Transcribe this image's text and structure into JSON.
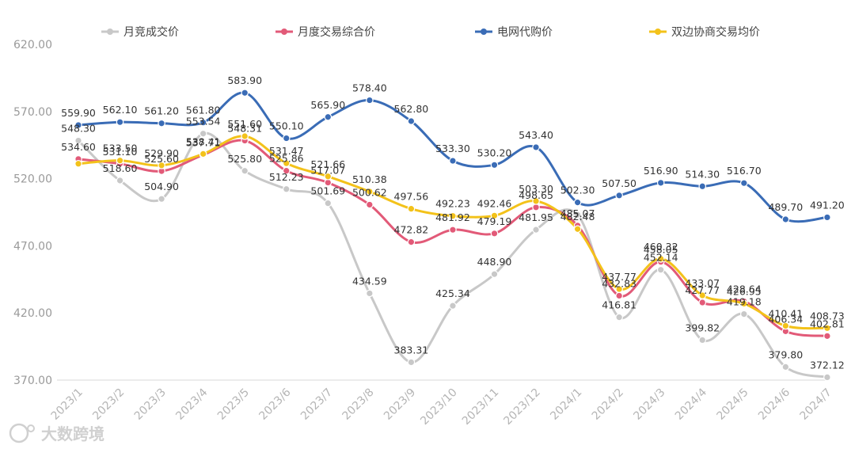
{
  "chart_data": {
    "type": "line",
    "title": "",
    "xlabel": "",
    "ylabel": "",
    "ylim": [
      370,
      620
    ],
    "yticks": [
      370,
      420,
      470,
      520,
      570,
      620
    ],
    "ytick_labels": [
      "370.00",
      "420.00",
      "470.00",
      "520.00",
      "570.00",
      "620.00"
    ],
    "grid": false,
    "legend_position": "top",
    "categories": [
      "2023/1",
      "2023/2",
      "2023/3",
      "2023/4",
      "2023/5",
      "2023/6",
      "2023/7",
      "2023/8",
      "2023/9",
      "2023/10",
      "2023/11",
      "2023/12",
      "2024/1",
      "2024/2",
      "2024/3",
      "2024/4",
      "2024/5",
      "2024/6",
      "2024/7"
    ],
    "series": [
      {
        "name": "月竞成交价",
        "color": "#c8c8c8",
        "values": [
          548.3,
          518.6,
          504.9,
          553.54,
          525.8,
          512.23,
          501.69,
          434.59,
          383.31,
          425.34,
          448.9,
          481.95,
          493.09,
          416.81,
          452.14,
          399.82,
          419.18,
          379.8,
          372.12
        ],
        "labels": [
          "548.30",
          "518.60",
          "504.90",
          "553.54",
          "525.80",
          "512.23",
          "501.69",
          "434.59",
          "383.31",
          "425.34",
          "448.90",
          "481.95",
          "",
          "416.81",
          "452.14",
          "399.82",
          "419.18",
          "379.80",
          "372.12"
        ]
      },
      {
        "name": "月度交易综合价",
        "color": "#e25a78",
        "values": [
          534.6,
          531.1,
          525.6,
          537.71,
          548.31,
          525.86,
          517.07,
          500.62,
          472.82,
          481.92,
          479.19,
          498.65,
          485.07,
          432.83,
          458.05,
          427.77,
          428.64,
          406.34,
          402.81
        ],
        "labels": [
          "534.60",
          "531.10",
          "525.60",
          "537.71",
          "548.31",
          "525.86",
          "517.07",
          "500.62",
          "472.82",
          "481.92",
          "479.19",
          "498.65",
          "485.07",
          "432.83",
          "458.05",
          "427.77",
          "428.64",
          "406.34",
          "402.81"
        ]
      },
      {
        "name": "电网代购价",
        "color": "#3a6cb6",
        "values": [
          559.9,
          562.1,
          561.2,
          561.8,
          583.9,
          550.1,
          565.9,
          578.4,
          562.8,
          533.3,
          530.2,
          543.4,
          502.3,
          507.5,
          516.9,
          514.3,
          516.7,
          489.7,
          491.2
        ],
        "labels": [
          "559.90",
          "562.10",
          "561.20",
          "561.80",
          "583.90",
          "550.10",
          "565.90",
          "578.40",
          "562.80",
          "533.30",
          "530.20",
          "543.40",
          "502.30",
          "507.50",
          "516.90",
          "514.30",
          "516.70",
          "489.70",
          "491.20"
        ]
      },
      {
        "name": "双边协商交易均价",
        "color": "#f3c21a",
        "values": [
          531.1,
          533.5,
          529.9,
          538.41,
          551.6,
          531.47,
          521.66,
          510.38,
          497.56,
          492.23,
          492.46,
          503.3,
          482.48,
          437.77,
          460.32,
          433.07,
          426.95,
          410.41,
          408.73
        ],
        "labels": [
          "",
          "533.50",
          "529.90",
          "538.41",
          "551.60",
          "531.47",
          "521.66",
          "510.38",
          "497.56",
          "492.23",
          "492.46",
          "503.30",
          "482.48",
          "437.77",
          "460.32",
          "433.07",
          "426.95",
          "410.41",
          "408.73"
        ]
      }
    ]
  },
  "watermark": {
    "text": "大数跨境"
  }
}
